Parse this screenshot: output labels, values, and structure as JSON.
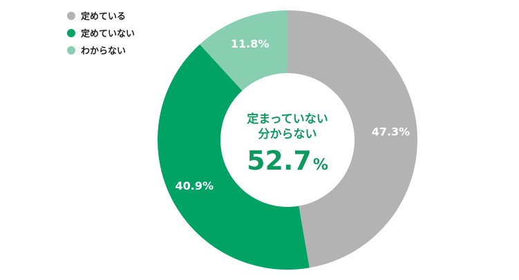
{
  "chart_data": {
    "type": "pie",
    "style": "donut",
    "start_angle_deg": 0,
    "direction": "clockwise",
    "legend_position": "top-left",
    "categories": [
      "定めている",
      "定めていない",
      "わからない"
    ],
    "values": [
      47.3,
      40.9,
      11.8
    ],
    "labels": [
      "47.3%",
      "40.9%",
      "11.8%"
    ],
    "colors": [
      "#b3b3b3",
      "#00a364",
      "#88cfb2"
    ],
    "center_text": {
      "line1": "定まっていない",
      "line2": "分からない",
      "value": "52.7",
      "unit": "%"
    }
  }
}
